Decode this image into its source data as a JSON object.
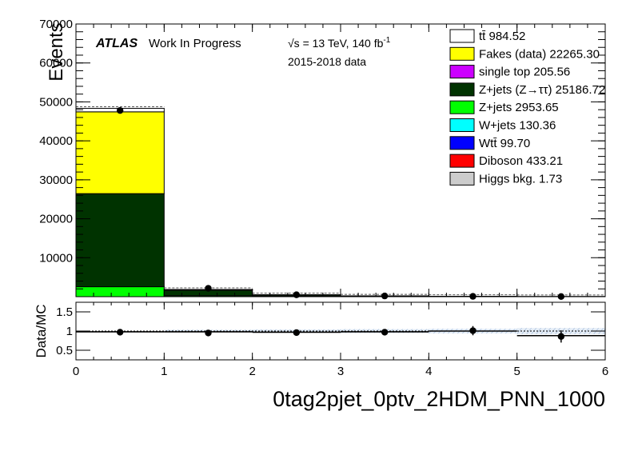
{
  "header": {
    "atlas": "ATLAS",
    "status": "Work In Progress",
    "energy": "√s = 13 TeV, 140 fb",
    "energy_sup": "-1",
    "dataset": "2015-2018 data"
  },
  "main_ylabel": "Events",
  "ratio_ylabel": "Data/MC",
  "region_label": "0tag2pjet_0ptv_2HDM_PNN_1000",
  "chart_data": [
    {
      "type": "bar",
      "stacked": true,
      "title": "",
      "xlabel": "0tag2pjet_0ptv_2HDM_PNN_1000",
      "ylabel": "Events",
      "xlim": [
        0,
        6
      ],
      "ylim": [
        0,
        70000
      ],
      "bin_edges": [
        0,
        1,
        2,
        3,
        4,
        5,
        6
      ],
      "x_ticks": [
        "0",
        "1",
        "2",
        "3",
        "4",
        "5",
        "6"
      ],
      "y_ticks": [
        "10000",
        "20000",
        "30000",
        "40000",
        "50000",
        "60000",
        "70000"
      ],
      "legend_position": "top-right",
      "grid": false,
      "series": [
        {
          "name": "Z+jets 2953.65",
          "color": "#00ff00",
          "values": [
            2550,
            250,
            90,
            35,
            18,
            10
          ]
        },
        {
          "name": "Z+jets (Z→ττ) 25186.72",
          "color": "#003300",
          "values": [
            23900,
            1400,
            350,
            140,
            55,
            25
          ]
        },
        {
          "name": "Fakes (data) 22265.30",
          "color": "#ffff00",
          "values": [
            21000,
            150,
            30,
            10,
            5,
            3
          ]
        },
        {
          "name": "tt̄ 984.52",
          "color": "#ffffff",
          "values": [
            900,
            40,
            10,
            3,
            1,
            0
          ]
        }
      ],
      "minor_series": [
        {
          "name": "single top 205.56",
          "color": "#cc00ff"
        },
        {
          "name": "W+jets 130.36",
          "color": "#00ffff"
        },
        {
          "name": "Wtt̄ 99.70",
          "color": "#0000ff"
        },
        {
          "name": "Diboson 433.21",
          "color": "#ff0000"
        },
        {
          "name": "Higgs bkg. 1.73",
          "color": "#cccccc"
        }
      ],
      "data_points": {
        "x": [
          0.5,
          1.5,
          2.5,
          3.5,
          4.5,
          5.5
        ],
        "y": [
          47800,
          2150,
          490,
          185,
          80,
          38
        ]
      }
    },
    {
      "type": "scatter",
      "title": "",
      "xlabel": "",
      "ylabel": "Data/MC",
      "xlim": [
        0,
        6
      ],
      "ylim": [
        0.25,
        1.75
      ],
      "x_ticks": [
        "0",
        "1",
        "2",
        "3",
        "4",
        "5",
        "6"
      ],
      "y_ticks": [
        "0.5",
        "1",
        "1.5"
      ],
      "reference_line": 1,
      "x": [
        0.5,
        1.5,
        2.5,
        3.5,
        4.5,
        5.5
      ],
      "y": [
        0.97,
        0.95,
        0.96,
        0.97,
        1.01,
        0.86
      ],
      "y_err": [
        0.01,
        0.03,
        0.05,
        0.08,
        0.12,
        0.16
      ],
      "mc_level": [
        0.98,
        0.98,
        0.97,
        0.98,
        1.0,
        0.88
      ],
      "uncertainty_band": [
        0.0,
        0.03,
        0.04,
        0.05,
        0.06,
        0.08
      ]
    }
  ]
}
